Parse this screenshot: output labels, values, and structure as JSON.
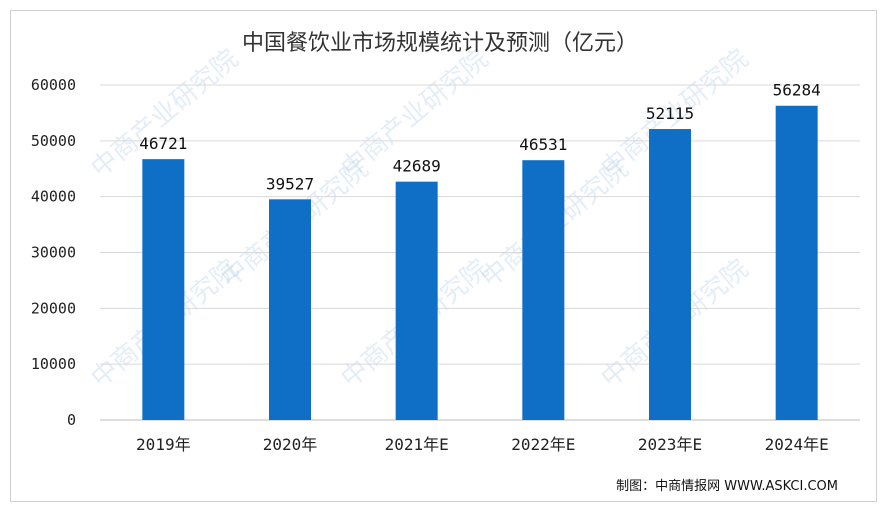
{
  "chart_data": {
    "type": "bar",
    "title": "中国餐饮业市场规模统计及预测（亿元）",
    "categories": [
      "2019年",
      "2020年",
      "2021年E",
      "2022年E",
      "2023年E",
      "2024年E"
    ],
    "values": [
      46721,
      39527,
      42689,
      46531,
      52115,
      56284
    ],
    "xlabel": "",
    "ylabel": "",
    "ylim": [
      0,
      60000
    ],
    "yticks": [
      0,
      10000,
      20000,
      30000,
      40000,
      50000,
      60000
    ],
    "grid": true,
    "bar_color": "#0f6fc6",
    "data_labels": true
  },
  "watermark": "中商产业研究院",
  "credit": "制图：中商情报网 WWW.ASKCI.COM"
}
